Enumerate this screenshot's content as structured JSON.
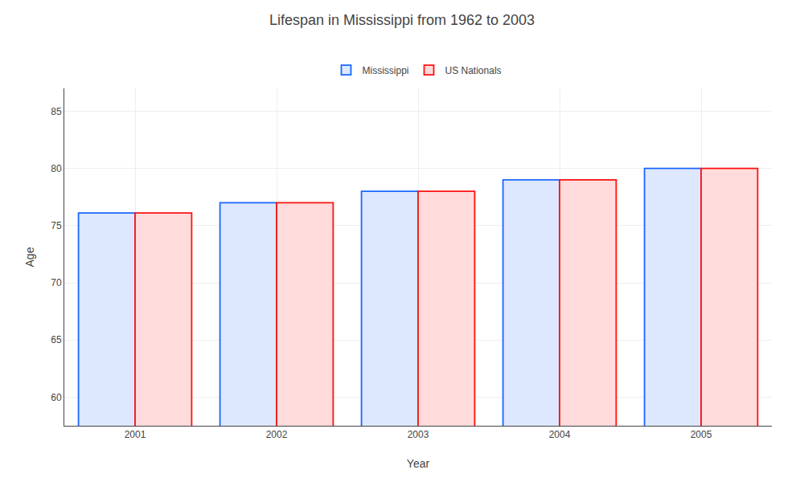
{
  "chart_data": {
    "type": "bar",
    "title": "Lifespan in Mississippi from 1962 to 2003",
    "x_label": "Year",
    "y_label": "Age",
    "categories": [
      "2001",
      "2002",
      "2003",
      "2004",
      "2005"
    ],
    "series": [
      {
        "name": "Mississippi",
        "color": "#1a66ff",
        "values": [
          76.1,
          77.0,
          78.0,
          79.0,
          80.0
        ]
      },
      {
        "name": "US Nationals",
        "color": "#ff1111",
        "values": [
          76.1,
          77.0,
          78.0,
          79.0,
          80.0
        ]
      }
    ],
    "ylim": [
      57.5,
      87
    ],
    "yticks": [
      60,
      65,
      70,
      75,
      80,
      85
    ],
    "grid": true,
    "legend": "top"
  }
}
